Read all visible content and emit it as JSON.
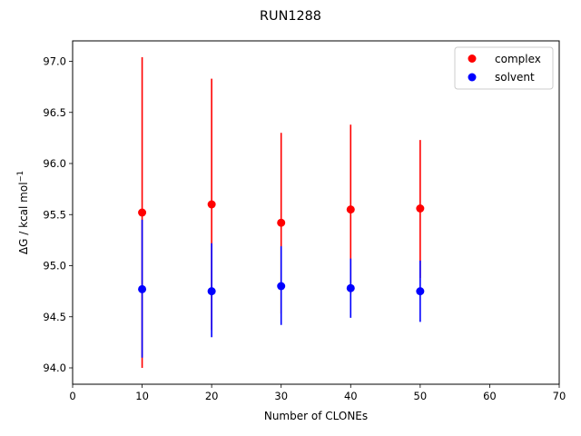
{
  "chart_data": {
    "type": "scatter",
    "title": "RUN1288",
    "xlabel": "Number of CLONEs",
    "ylabel": "ΔG / kcal mol",
    "ylabel_superscript": "−1",
    "xlim": [
      0,
      70
    ],
    "ylim": [
      93.84,
      97.2
    ],
    "xticks": [
      0,
      10,
      20,
      30,
      40,
      50,
      60,
      70
    ],
    "yticks": [
      94.0,
      94.5,
      95.0,
      95.5,
      96.0,
      96.5,
      97.0
    ],
    "grid": false,
    "legend_position": "top-right",
    "series": [
      {
        "name": "complex",
        "color": "#ff0000",
        "x": [
          10,
          20,
          30,
          40,
          50
        ],
        "y": [
          95.52,
          95.6,
          95.42,
          95.55,
          95.56
        ],
        "err_low": [
          94.0,
          94.37,
          94.53,
          94.72,
          94.88
        ],
        "err_high": [
          97.04,
          96.83,
          96.3,
          96.38,
          96.23
        ]
      },
      {
        "name": "solvent",
        "color": "#0000ff",
        "x": [
          10,
          20,
          30,
          40,
          50
        ],
        "y": [
          94.77,
          94.75,
          94.8,
          94.78,
          94.75
        ],
        "err_low": [
          94.1,
          94.3,
          94.42,
          94.49,
          94.45
        ],
        "err_high": [
          95.45,
          95.22,
          95.19,
          95.07,
          95.05
        ]
      }
    ]
  }
}
